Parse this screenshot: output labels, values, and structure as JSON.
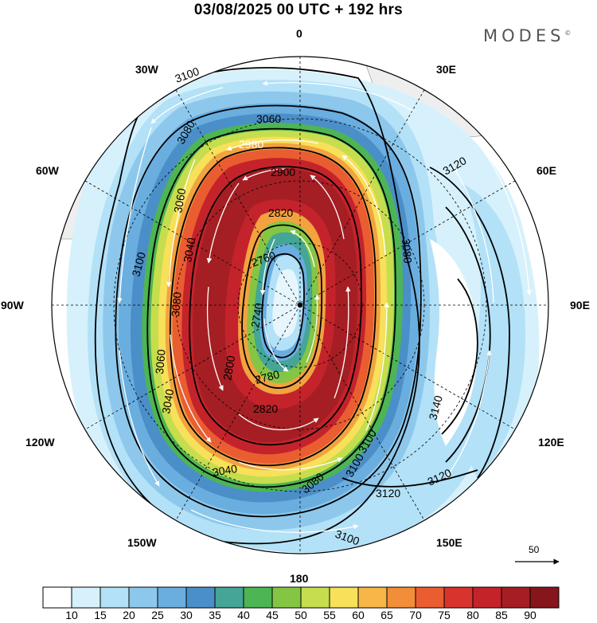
{
  "header": {
    "title": "03/08/2025  00 UTC  + 192 hrs",
    "brand": "MODES",
    "brand_mark": "©"
  },
  "longitude_labels": {
    "north": "0",
    "n30e": "30E",
    "n60e": "60E",
    "east": "90E",
    "s120e": "120E",
    "s150e": "150E",
    "south": "180",
    "s150w": "150W",
    "s120w": "120W",
    "west": "90W",
    "n60w": "60W",
    "n30w": "30W"
  },
  "contour_labels": {
    "c3100_nw": "3100",
    "c3080_nw": "3080",
    "c3060_n": "3060",
    "c3060_w": "3060",
    "c3040_w": "3040",
    "c3100_w": "3100",
    "c3080_w": "3080",
    "c3060_sw": "3060",
    "c3040_sw": "3040",
    "c3040_s": "3040",
    "c3080_s": "3080",
    "c3100_s": "3100",
    "c3120_ne": "3120",
    "c3080_e": "3080",
    "c3140_se": "3140",
    "c3120_se": "3120",
    "c3120_se2": "3120",
    "c3100_sse": "3100",
    "c3100_bottom": "3100",
    "c2980_n": "2980",
    "c2900_n": "2900",
    "c2820_n": "2820",
    "c2760_c": "2760",
    "c2740_c": "2740",
    "c2780_s": "2780",
    "c2800_sw": "2800",
    "c2820_s": "2820"
  },
  "vector_reference": {
    "value": "50"
  },
  "colorbar": {
    "ticks": [
      "10",
      "15",
      "20",
      "25",
      "30",
      "35",
      "40",
      "45",
      "50",
      "55",
      "60",
      "65",
      "70",
      "75",
      "80",
      "85",
      "90"
    ],
    "colors": [
      "#ffffff",
      "#d6f1fb",
      "#b3e1f7",
      "#8dc8ec",
      "#6aaee0",
      "#4b8fc8",
      "#45a596",
      "#4db553",
      "#84c644",
      "#c6dd4e",
      "#f7e05a",
      "#f6b648",
      "#f28d39",
      "#ea5d31",
      "#d9332d",
      "#c4232b",
      "#a51e23",
      "#86161b"
    ]
  },
  "colors": {
    "land": "#f0f0f0",
    "ocean": "#ffffff",
    "accent": "#000000"
  }
}
